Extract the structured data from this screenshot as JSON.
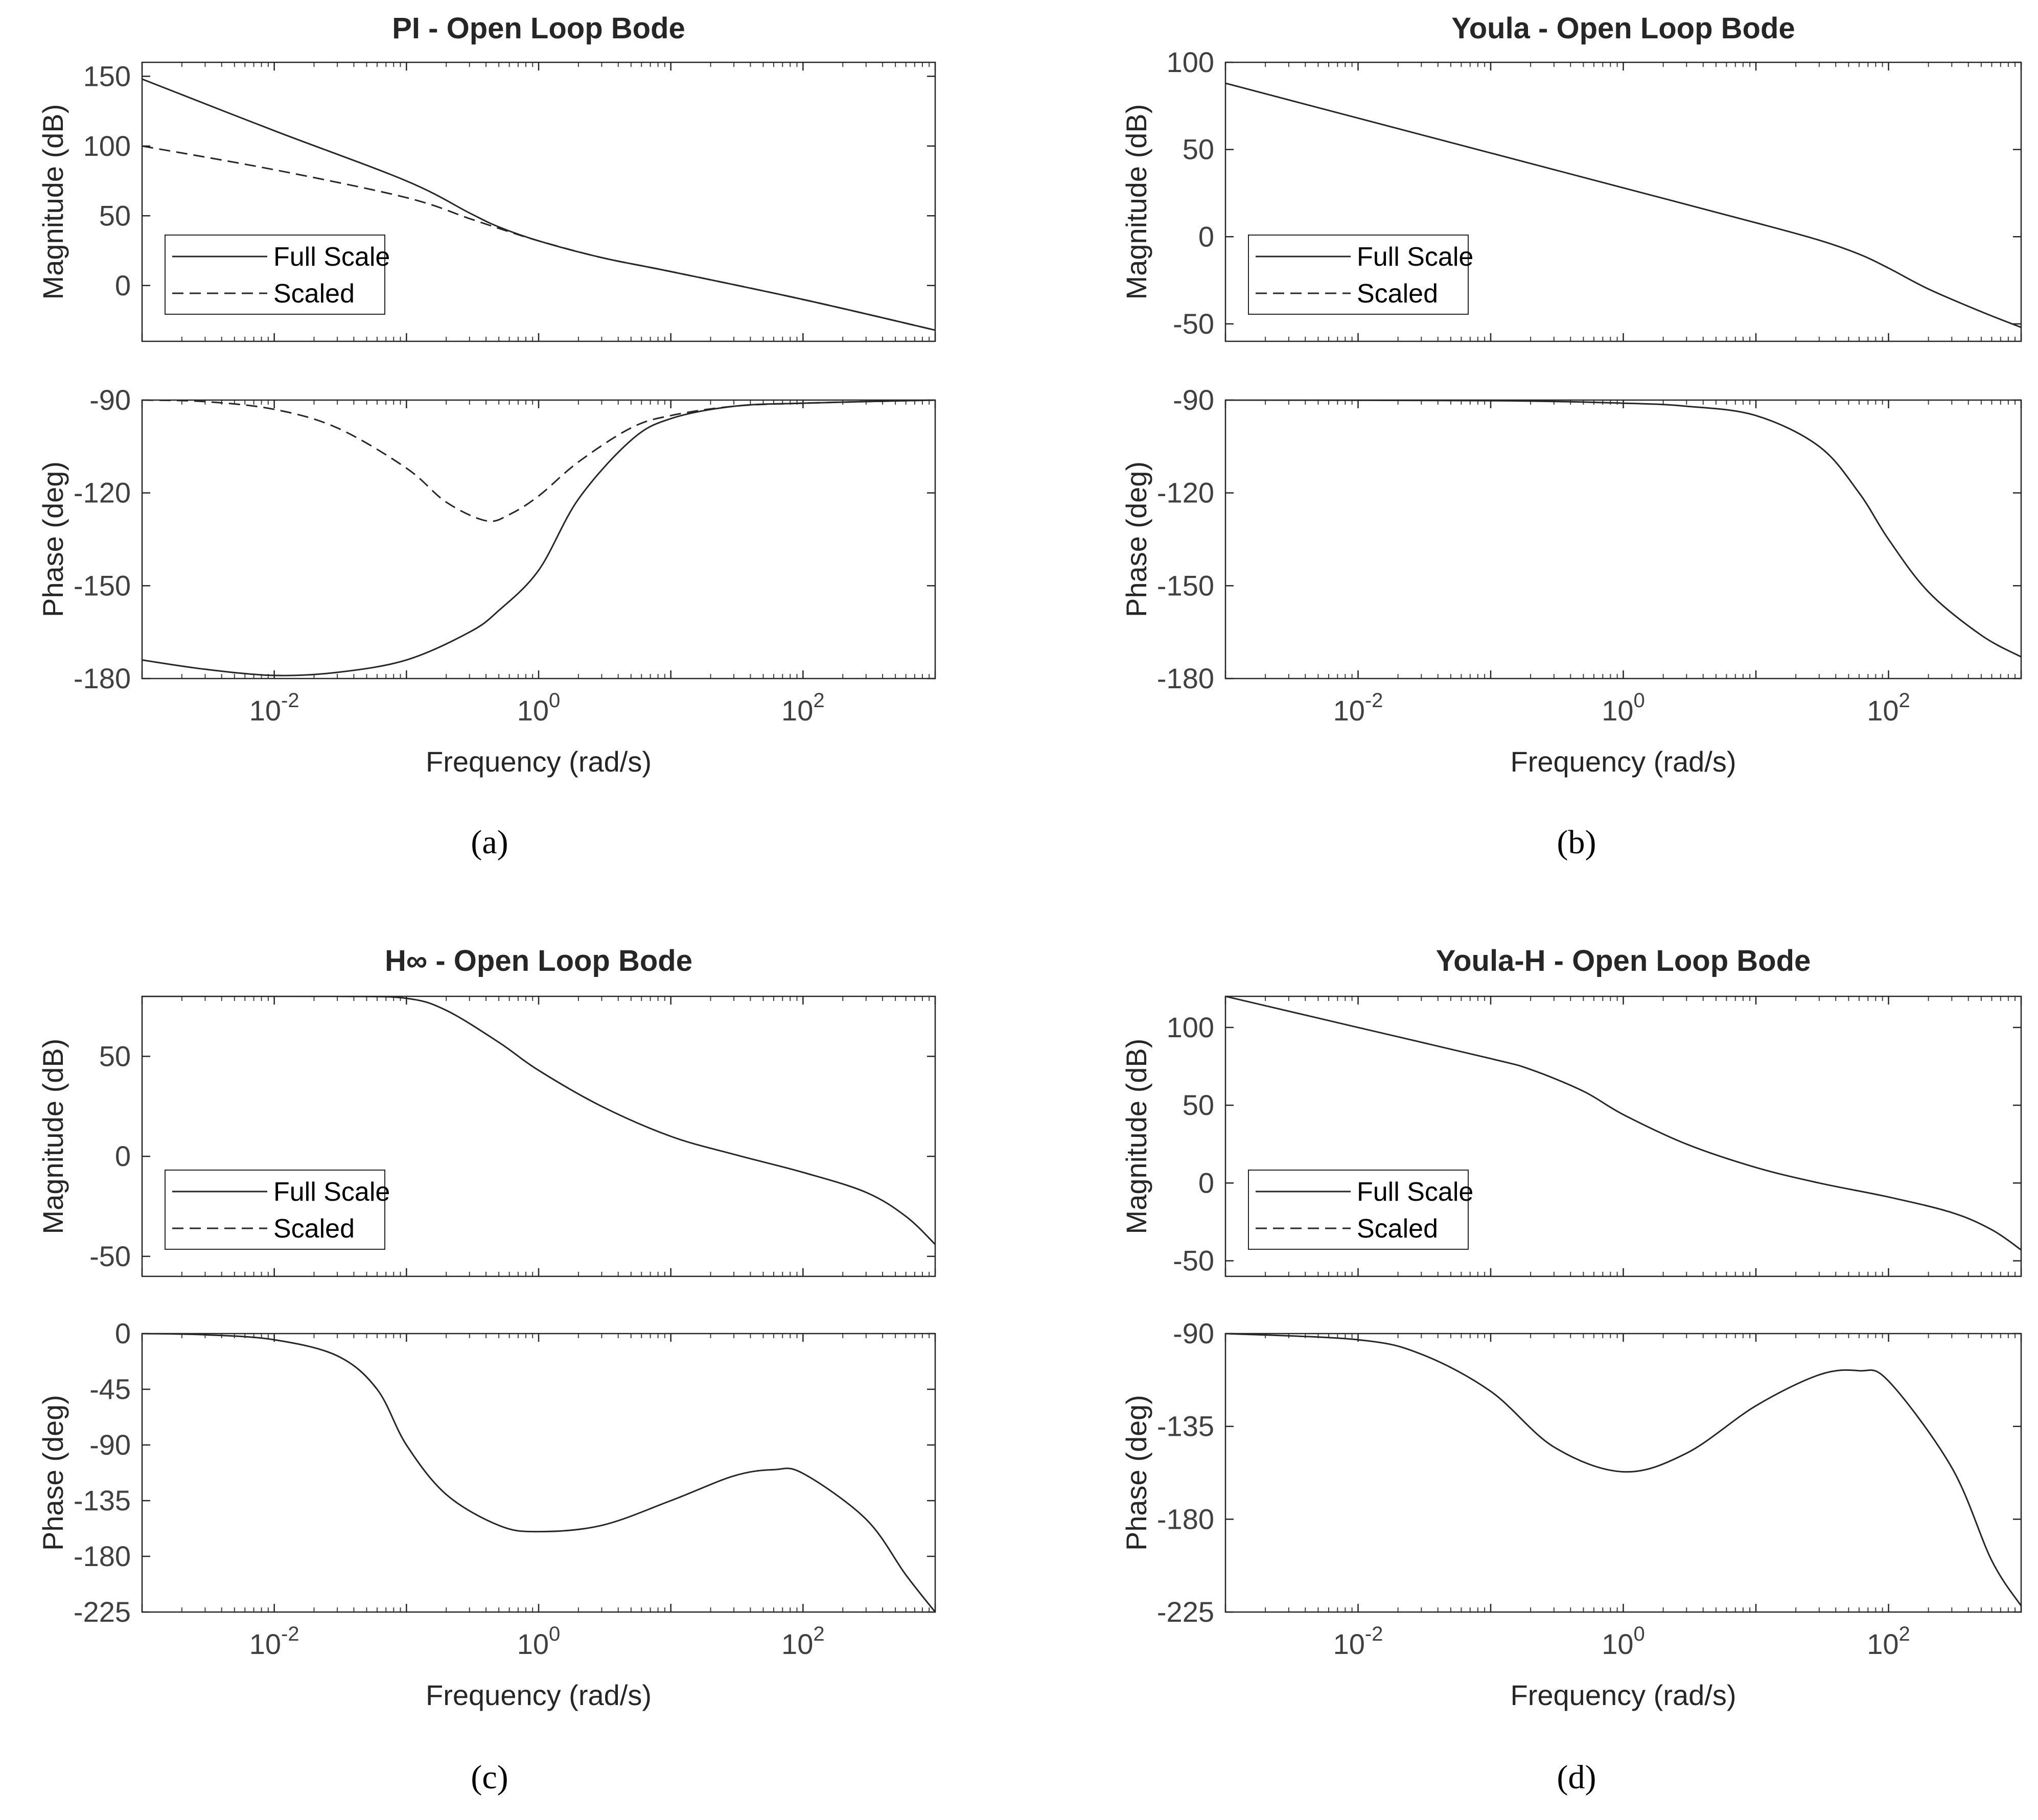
{
  "figure": {
    "colors": {
      "line": "#262626",
      "axes": "#262626",
      "minor_tick": "#404040",
      "background": "#ffffff"
    },
    "captions": [
      "(a)",
      "(b)",
      "(c)",
      "(d)"
    ]
  },
  "chart_data": [
    {
      "id": "a",
      "type": "line",
      "caption": "(a)",
      "title": "PI - Open Loop Bode",
      "xlabel": "Frequency (rad/s)",
      "xscale": "log",
      "xlim": [
        0.001,
        1000
      ],
      "x_tick_labels": [
        {
          "base": "10",
          "exp": "-2",
          "value": 0.01
        },
        {
          "base": "10",
          "exp": "0",
          "value": 1
        },
        {
          "base": "10",
          "exp": "2",
          "value": 100
        }
      ],
      "legend": {
        "entries": [
          "Full Scale",
          "Scaled"
        ],
        "location": "lower-left of magnitude panel"
      },
      "magnitude": {
        "ylabel": "Magnitude (dB)",
        "ylim": [
          -40,
          160
        ],
        "yticks": [
          0,
          50,
          100,
          150
        ],
        "series": [
          {
            "name": "Full Scale",
            "style": "solid",
            "points": [
              [
                0.001,
                148
              ],
              [
                0.01,
                111
              ],
              [
                0.1,
                75
              ],
              [
                0.3,
                52
              ],
              [
                0.5,
                42
              ],
              [
                1,
                32
              ],
              [
                3,
                20
              ],
              [
                10,
                10
              ],
              [
                100,
                -10
              ],
              [
                1000,
                -32
              ]
            ]
          },
          {
            "name": "Scaled",
            "style": "dashed",
            "points": [
              [
                0.001,
                100
              ],
              [
                0.01,
                83
              ],
              [
                0.1,
                63
              ],
              [
                0.3,
                48
              ],
              [
                0.5,
                41
              ],
              [
                1,
                32
              ],
              [
                3,
                20
              ],
              [
                10,
                10
              ],
              [
                100,
                -10
              ],
              [
                1000,
                -32
              ]
            ]
          }
        ]
      },
      "phase": {
        "ylabel": "Phase (deg)",
        "ylim": [
          -180,
          -90
        ],
        "yticks": [
          -180,
          -150,
          -120,
          -90
        ],
        "series": [
          {
            "name": "Full Scale",
            "style": "solid",
            "points": [
              [
                0.001,
                -174
              ],
              [
                0.003,
                -177
              ],
              [
                0.01,
                -179
              ],
              [
                0.03,
                -178
              ],
              [
                0.1,
                -174
              ],
              [
                0.3,
                -165
              ],
              [
                0.5,
                -158
              ],
              [
                1,
                -145
              ],
              [
                2,
                -122
              ],
              [
                5,
                -103
              ],
              [
                10,
                -96
              ],
              [
                30,
                -92
              ],
              [
                100,
                -91
              ],
              [
                1000,
                -90
              ]
            ]
          },
          {
            "name": "Scaled",
            "style": "dashed",
            "points": [
              [
                0.001,
                -90
              ],
              [
                0.003,
                -90.5
              ],
              [
                0.01,
                -93
              ],
              [
                0.03,
                -99
              ],
              [
                0.1,
                -112
              ],
              [
                0.2,
                -123
              ],
              [
                0.4,
                -129
              ],
              [
                0.6,
                -127
              ],
              [
                1,
                -121
              ],
              [
                2,
                -110
              ],
              [
                5,
                -99
              ],
              [
                10,
                -95
              ],
              [
                30,
                -92
              ],
              [
                100,
                -91
              ],
              [
                1000,
                -90
              ]
            ]
          }
        ]
      }
    },
    {
      "id": "b",
      "type": "line",
      "caption": "(b)",
      "title": "Youla - Open Loop Bode",
      "xlabel": "Frequency (rad/s)",
      "xscale": "log",
      "xlim": [
        0.001,
        1000
      ],
      "x_tick_labels": [
        {
          "base": "10",
          "exp": "-2",
          "value": 0.01
        },
        {
          "base": "10",
          "exp": "0",
          "value": 1
        },
        {
          "base": "10",
          "exp": "2",
          "value": 100
        }
      ],
      "legend": {
        "entries": [
          "Full Scale",
          "Scaled"
        ],
        "location": "lower-left of magnitude panel"
      },
      "magnitude": {
        "ylabel": "Magnitude (dB)",
        "ylim": [
          -60,
          100
        ],
        "yticks": [
          -50,
          0,
          50,
          100
        ],
        "series": [
          {
            "name": "Full Scale",
            "style": "solid",
            "points": [
              [
                0.001,
                88
              ],
              [
                0.01,
                68
              ],
              [
                0.1,
                48
              ],
              [
                1,
                28
              ],
              [
                10,
                8
              ],
              [
                30,
                -2
              ],
              [
                60,
                -10
              ],
              [
                100,
                -18
              ],
              [
                200,
                -30
              ],
              [
                500,
                -43
              ],
              [
                1000,
                -52
              ]
            ]
          }
        ]
      },
      "phase": {
        "ylabel": "Phase (deg)",
        "ylim": [
          -180,
          -90
        ],
        "yticks": [
          -180,
          -150,
          -120,
          -90
        ],
        "series": [
          {
            "name": "Full Scale",
            "style": "solid",
            "points": [
              [
                0.001,
                -90
              ],
              [
                0.1,
                -90.2
              ],
              [
                1,
                -91
              ],
              [
                3,
                -92
              ],
              [
                10,
                -95
              ],
              [
                30,
                -105
              ],
              [
                60,
                -120
              ],
              [
                100,
                -135
              ],
              [
                200,
                -152
              ],
              [
                500,
                -166
              ],
              [
                1000,
                -173
              ]
            ]
          }
        ]
      }
    },
    {
      "id": "c",
      "type": "line",
      "caption": "(c)",
      "title": "H∞ - Open Loop Bode",
      "xlabel": "Frequency (rad/s)",
      "xscale": "log",
      "xlim": [
        0.001,
        1000
      ],
      "x_tick_labels": [
        {
          "base": "10",
          "exp": "-2",
          "value": 0.01
        },
        {
          "base": "10",
          "exp": "0",
          "value": 1
        },
        {
          "base": "10",
          "exp": "2",
          "value": 100
        }
      ],
      "legend": {
        "entries": [
          "Full Scale",
          "Scaled"
        ],
        "location": "lower-left of magnitude panel"
      },
      "magnitude": {
        "ylabel": "Magnitude (dB)",
        "ylim": [
          -60,
          80
        ],
        "yticks": [
          -50,
          0,
          50
        ],
        "series": [
          {
            "name": "Full Scale",
            "style": "solid",
            "points": [
              [
                0.001,
                80
              ],
              [
                0.03,
                80
              ],
              [
                0.1,
                79
              ],
              [
                0.2,
                73
              ],
              [
                0.5,
                57
              ],
              [
                1,
                43
              ],
              [
                3,
                25
              ],
              [
                10,
                10
              ],
              [
                30,
                1
              ],
              [
                100,
                -8
              ],
              [
                300,
                -18
              ],
              [
                600,
                -30
              ],
              [
                1000,
                -44
              ]
            ]
          }
        ]
      },
      "phase": {
        "ylabel": "Phase (deg)",
        "ylim": [
          -225,
          0
        ],
        "yticks": [
          -225,
          -180,
          -135,
          -90,
          -45,
          0
        ],
        "series": [
          {
            "name": "Full Scale",
            "style": "solid",
            "points": [
              [
                0.001,
                0
              ],
              [
                0.003,
                -1
              ],
              [
                0.01,
                -5
              ],
              [
                0.03,
                -18
              ],
              [
                0.06,
                -45
              ],
              [
                0.1,
                -90
              ],
              [
                0.2,
                -130
              ],
              [
                0.5,
                -155
              ],
              [
                1,
                -160
              ],
              [
                3,
                -155
              ],
              [
                10,
                -135
              ],
              [
                30,
                -115
              ],
              [
                60,
                -110
              ],
              [
                100,
                -113
              ],
              [
                300,
                -150
              ],
              [
                600,
                -195
              ],
              [
                1000,
                -225
              ]
            ]
          }
        ]
      }
    },
    {
      "id": "d",
      "type": "line",
      "caption": "(d)",
      "title": "Youla-H - Open Loop Bode",
      "xlabel": "Frequency (rad/s)",
      "xscale": "log",
      "xlim": [
        0.001,
        1000
      ],
      "x_tick_labels": [
        {
          "base": "10",
          "exp": "-2",
          "value": 0.01
        },
        {
          "base": "10",
          "exp": "0",
          "value": 1
        },
        {
          "base": "10",
          "exp": "2",
          "value": 100
        }
      ],
      "legend": {
        "entries": [
          "Full Scale",
          "Scaled"
        ],
        "location": "lower-left of magnitude panel"
      },
      "magnitude": {
        "ylabel": "Magnitude (dB)",
        "ylim": [
          -60,
          120
        ],
        "yticks": [
          -50,
          0,
          50,
          100
        ],
        "series": [
          {
            "name": "Full Scale",
            "style": "solid",
            "points": [
              [
                0.001,
                120
              ],
              [
                0.01,
                100
              ],
              [
                0.1,
                80
              ],
              [
                0.2,
                73
              ],
              [
                0.5,
                59
              ],
              [
                1,
                44
              ],
              [
                3,
                25
              ],
              [
                10,
                10
              ],
              [
                30,
                0
              ],
              [
                100,
                -9
              ],
              [
                300,
                -19
              ],
              [
                600,
                -30
              ],
              [
                1000,
                -43
              ]
            ]
          }
        ]
      },
      "phase": {
        "ylabel": "Phase (deg)",
        "ylim": [
          -225,
          -90
        ],
        "yticks": [
          -225,
          -180,
          -135,
          -90
        ],
        "series": [
          {
            "name": "Full Scale",
            "style": "solid",
            "points": [
              [
                0.001,
                -90
              ],
              [
                0.01,
                -93
              ],
              [
                0.03,
                -100
              ],
              [
                0.1,
                -118
              ],
              [
                0.3,
                -145
              ],
              [
                1,
                -157
              ],
              [
                3,
                -148
              ],
              [
                10,
                -125
              ],
              [
                30,
                -110
              ],
              [
                60,
                -108
              ],
              [
                100,
                -113
              ],
              [
                300,
                -155
              ],
              [
                600,
                -200
              ],
              [
                1000,
                -222
              ]
            ]
          }
        ]
      }
    }
  ]
}
